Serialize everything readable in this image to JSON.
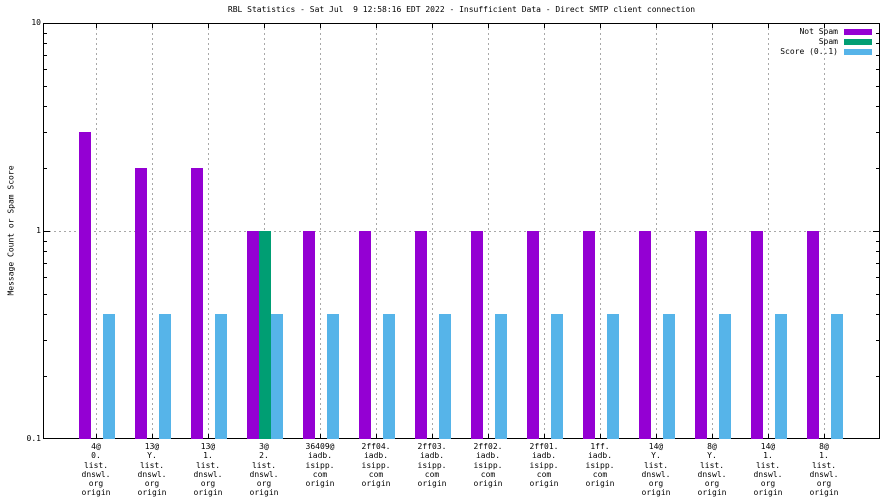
{
  "chart": {
    "title": "RBL Statistics - Sat Jul  9 12:58:16 EDT 2022 - Insufficient Data - Direct SMTP client connection",
    "ylabel": "Message Count or Spam Score"
  },
  "legend": {
    "entries": [
      {
        "label": "Not Spam",
        "color": "#9400d3"
      },
      {
        "label": "Spam",
        "color": "#009e73"
      },
      {
        "label": "Score (0..1)",
        "color": "#56b4e9"
      }
    ],
    "position": "top-right-inside"
  },
  "colors": {
    "not_spam": "#9400d3",
    "spam": "#009e73",
    "score": "#56b4e9",
    "grid": "#a8a8a8",
    "axis": "#000000",
    "background": "#ffffff"
  },
  "chart_data": {
    "type": "bar",
    "y_scale": "log10",
    "ylim": [
      0.1,
      10
    ],
    "yticks": [
      {
        "label": "10",
        "value": 10
      },
      {
        "label": "1",
        "value": 1
      },
      {
        "label": "0.1",
        "value": 0.1
      }
    ],
    "grid": {
      "horizontal_at": [
        1
      ],
      "vertical": "one-per-category",
      "style": "dotted"
    },
    "categories": [
      [
        "4@",
        "0.",
        "list.",
        "dnswl.",
        "org",
        "origin"
      ],
      [
        "13@",
        "Y.",
        "list.",
        "dnswl.",
        "org",
        "origin"
      ],
      [
        "13@",
        "1.",
        "list.",
        "dnswl.",
        "org",
        "origin"
      ],
      [
        "3@",
        "2.",
        "list.",
        "dnswl.",
        "org",
        "origin"
      ],
      [
        "36409@",
        "iadb.",
        "isipp.",
        "com",
        "origin"
      ],
      [
        "2ff04.",
        "iadb.",
        "isipp.",
        "com",
        "origin"
      ],
      [
        "2ff03.",
        "iadb.",
        "isipp.",
        "com",
        "origin"
      ],
      [
        "2ff02.",
        "iadb.",
        "isipp.",
        "com",
        "origin"
      ],
      [
        "2ff01.",
        "iadb.",
        "isipp.",
        "com",
        "origin"
      ],
      [
        "1ff.",
        "iadb.",
        "isipp.",
        "com",
        "origin"
      ],
      [
        "14@",
        "Y.",
        "list.",
        "dnswl.",
        "org",
        "origin"
      ],
      [
        "8@",
        "Y.",
        "list.",
        "dnswl.",
        "org",
        "origin"
      ],
      [
        "14@",
        "1.",
        "list.",
        "dnswl.",
        "org",
        "origin"
      ],
      [
        "8@",
        "1.",
        "list.",
        "dnswl.",
        "org",
        "origin"
      ]
    ],
    "series": [
      {
        "name": "Not Spam",
        "color": "#9400d3",
        "values": [
          3,
          2,
          2,
          1,
          1,
          1,
          1,
          1,
          1,
          1,
          1,
          1,
          1,
          1
        ]
      },
      {
        "name": "Spam",
        "color": "#009e73",
        "values": [
          0,
          0,
          0,
          1,
          0,
          0,
          0,
          0,
          0,
          0,
          0,
          0,
          0,
          0
        ]
      },
      {
        "name": "Score (0..1)",
        "color": "#56b4e9",
        "values": [
          0.4,
          0.4,
          0.4,
          0.4,
          0.4,
          0.4,
          0.4,
          0.4,
          0.4,
          0.4,
          0.4,
          0.4,
          0.4,
          0.4
        ]
      }
    ]
  }
}
